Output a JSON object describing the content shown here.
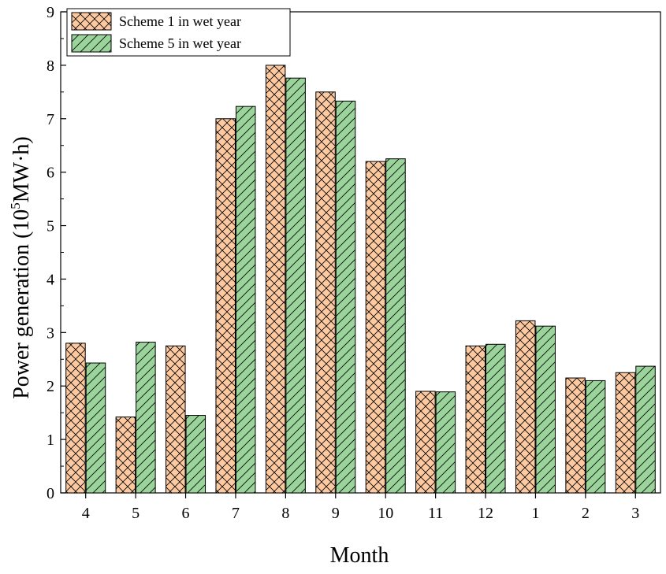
{
  "chart_data": {
    "type": "bar",
    "title": "",
    "xlabel": "Month",
    "ylabel_main": "Power generation (10",
    "ylabel_sup": "5",
    "ylabel_rest": "MW·h)",
    "ylim": [
      0,
      9
    ],
    "yticks": [
      0,
      1,
      2,
      3,
      4,
      5,
      6,
      7,
      8,
      9
    ],
    "categories": [
      "4",
      "5",
      "6",
      "7",
      "8",
      "9",
      "10",
      "11",
      "12",
      "1",
      "2",
      "3"
    ],
    "series": [
      {
        "name": "Scheme 1 in wet year",
        "values": [
          2.8,
          1.42,
          2.75,
          7.0,
          8.0,
          7.5,
          6.2,
          1.9,
          2.75,
          3.22,
          2.15,
          2.25
        ],
        "color": "#fcc9a0",
        "pattern": "crosshatch"
      },
      {
        "name": "Scheme 5 in wet year",
        "values": [
          2.43,
          2.82,
          1.45,
          7.23,
          7.76,
          7.33,
          6.25,
          1.89,
          2.78,
          3.12,
          2.1,
          2.37
        ],
        "color": "#9bd49b",
        "pattern": "diagonal"
      }
    ],
    "legend_position": "top-left"
  }
}
